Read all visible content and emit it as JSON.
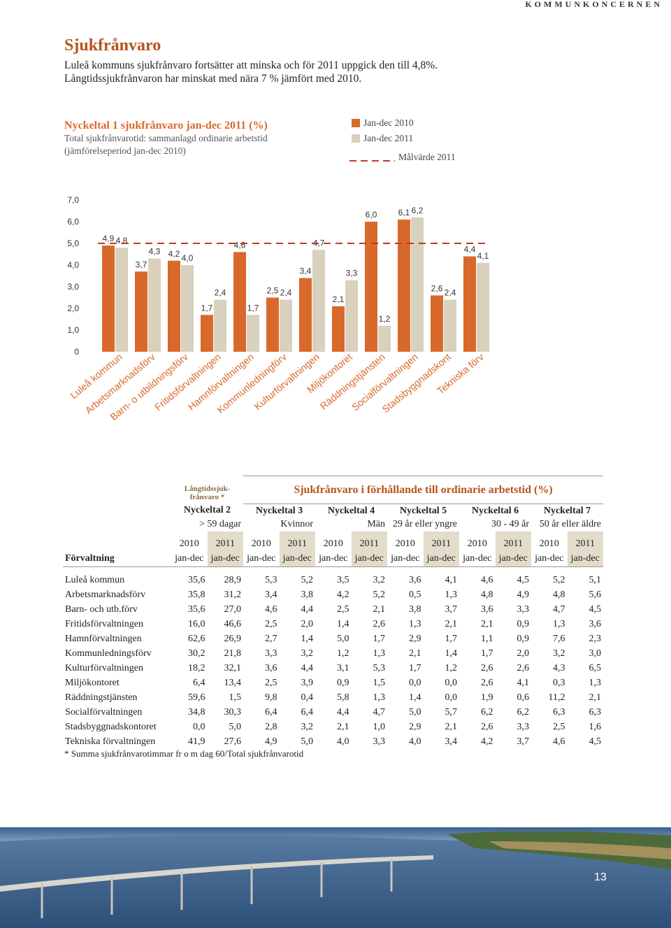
{
  "header": {
    "label": "KOMMUNKONCERNEN"
  },
  "intro": {
    "title": "Sjukfrånvaro",
    "lines": [
      "Luleå kommuns sjukfrånvaro fortsätter att minska och för 2011 uppgick den till 4,8%.",
      "Långtidssjukfrånvaron har minskat med nära 7 % jämfört med 2010."
    ]
  },
  "chart_data": {
    "type": "bar",
    "title": "Nyckeltal 1 sjukfrånvaro jan-dec 2011 (%)",
    "subtitle": [
      "Total sjukfrånvarotid: sammanlagd ordinarie arbetstid",
      "(jämförelseperiod jan-dec 2010)"
    ],
    "categories": [
      "Luleå kommun",
      "Arbetsmarknadsförv",
      "Barn- o utbildningsförv",
      "Fritidsförvaltningen",
      "Hamnförvaltningen",
      "Kommunledningförv",
      "Kulturförvaltningen",
      "Miljökontoret",
      "Räddningstjänsten",
      "Socialförvaltningen",
      "Stadsbyggnadskont",
      "Tekniska förv"
    ],
    "series": [
      {
        "name": "Jan-dec 2010",
        "color": "#d9692b",
        "values": [
          4.9,
          3.7,
          4.2,
          1.7,
          4.6,
          2.5,
          3.4,
          2.1,
          6.0,
          6.1,
          2.6,
          4.4
        ],
        "value_labels": [
          "4,9",
          "3,7",
          "4,2",
          "1,7",
          "4,6",
          "2,5",
          "3,4",
          "2,1",
          "6,0",
          "6,1",
          "2,6",
          "4,4"
        ]
      },
      {
        "name": "Jan-dec 2011",
        "color": "#d9d0bd",
        "values": [
          4.8,
          4.3,
          4.0,
          2.4,
          1.7,
          2.4,
          4.7,
          3.3,
          1.2,
          6.2,
          2.4,
          4.1
        ],
        "value_labels": [
          "4,8",
          "4,3",
          "4,0",
          "2,4",
          "1,7",
          "2,4",
          "4,7",
          "3,3",
          "1,2",
          "6,2",
          "2,4",
          "4,1"
        ]
      }
    ],
    "target": {
      "name": "Målvärde 2011",
      "value": 5.0,
      "color": "#c0392b"
    },
    "ylim": [
      0,
      7
    ],
    "yticks": [
      0,
      {
        "value": 1,
        "label": "1,0"
      },
      {
        "value": 2,
        "label": "2,0"
      },
      {
        "value": 3,
        "label": "3,0"
      },
      {
        "value": 4,
        "label": "4,0"
      },
      {
        "value": 5,
        "label": "5,0"
      },
      {
        "value": 6,
        "label": "6,0"
      },
      {
        "value": 7,
        "label": "7,0"
      }
    ],
    "grid": false
  },
  "table": {
    "group_headers": [
      [
        "Långtidssjuk-",
        "frånvaro *"
      ],
      "Sjukfrånvaro i förhållande till ordinarie arbetstid (%)"
    ],
    "measures": [
      {
        "name": "Nyckeltal 2",
        "sub": "> 59 dagar"
      },
      {
        "name": "Nyckeltal 3",
        "sub": "Kvinnor"
      },
      {
        "name": "Nyckeltal 4",
        "sub": "Män"
      },
      {
        "name": "Nyckeltal 5",
        "sub": "29 år eller yngre"
      },
      {
        "name": "Nyckeltal 6",
        "sub": "30 - 49 år"
      },
      {
        "name": "Nyckeltal 7",
        "sub": "50 år eller äldre"
      }
    ],
    "years": [
      "2010",
      "2011"
    ],
    "period": "jan-dec",
    "row_header": "Förvaltning",
    "rows": [
      [
        "Luleå kommun",
        "35,6",
        "28,9",
        "5,3",
        "5,2",
        "3,5",
        "3,2",
        "3,6",
        "4,1",
        "4,6",
        "4,5",
        "5,2",
        "5,1"
      ],
      [
        "Arbetsmarknadsförv",
        "35,8",
        "31,2",
        "3,4",
        "3,8",
        "4,2",
        "5,2",
        "0,5",
        "1,3",
        "4,8",
        "4,9",
        "4,8",
        "5,6"
      ],
      [
        "Barn- och utb.förv",
        "35,6",
        "27,0",
        "4,6",
        "4,4",
        "2,5",
        "2,1",
        "3,8",
        "3,7",
        "3,6",
        "3,3",
        "4,7",
        "4,5"
      ],
      [
        "Fritidsförvaltningen",
        "16,0",
        "46,6",
        "2,5",
        "2,0",
        "1,4",
        "2,6",
        "1,3",
        "2,1",
        "2,1",
        "0,9",
        "1,3",
        "3,6"
      ],
      [
        "Hamnförvaltningen",
        "62,6",
        "26,9",
        "2,7",
        "1,4",
        "5,0",
        "1,7",
        "2,9",
        "1,7",
        "1,1",
        "0,9",
        "7,6",
        "2,3"
      ],
      [
        "Kommunledningsförv",
        "30,2",
        "21,8",
        "3,3",
        "3,2",
        "1,2",
        "1,3",
        "2,1",
        "1,4",
        "1,7",
        "2,0",
        "3,2",
        "3,0"
      ],
      [
        "Kulturförvaltningen",
        "18,2",
        "32,1",
        "3,6",
        "4,4",
        "3,1",
        "5,3",
        "1,7",
        "1,2",
        "2,6",
        "2,6",
        "4,3",
        "6,5"
      ],
      [
        "Miljökontoret",
        "6,4",
        "13,4",
        "2,5",
        "3,9",
        "0,9",
        "1,5",
        "0,0",
        "0,0",
        "2,6",
        "4,1",
        "0,3",
        "1,3"
      ],
      [
        "Räddningstjänsten",
        "59,6",
        "1,5",
        "9,8",
        "0,4",
        "5,8",
        "1,3",
        "1,4",
        "0,0",
        "1,9",
        "0,6",
        "11,2",
        "2,1"
      ],
      [
        "Socialförvaltningen",
        "34,8",
        "30,3",
        "6,4",
        "6,4",
        "4,4",
        "4,7",
        "5,0",
        "5,7",
        "6,2",
        "6,2",
        "6,3",
        "6,3"
      ],
      [
        "Stadsbyggnadskontoret",
        "0,0",
        "5,0",
        "2,8",
        "3,2",
        "2,1",
        "1,0",
        "2,9",
        "2,1",
        "2,6",
        "3,3",
        "2,5",
        "1,6"
      ],
      [
        "Tekniska förvaltningen",
        "41,9",
        "27,6",
        "4,9",
        "5,0",
        "4,0",
        "3,3",
        "4,0",
        "3,4",
        "4,2",
        "3,7",
        "4,6",
        "4,5"
      ]
    ]
  },
  "footnote": "* Summa sjukfrånvarotimmar fr o m dag 60/Total sjukfrånvarotid",
  "page_number": "13"
}
